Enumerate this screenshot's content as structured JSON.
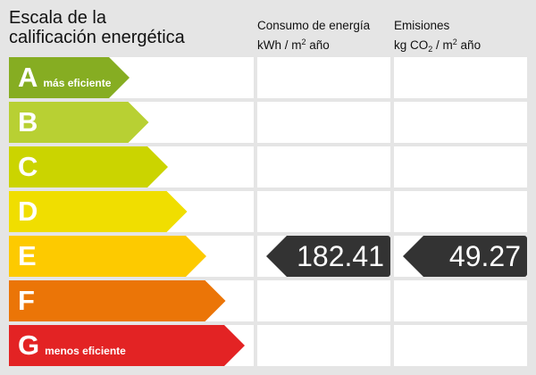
{
  "title_line1": "Escala de la",
  "title_line2": "calificación energética",
  "consumo": {
    "line1": "Consumo de energía",
    "unit_a": "kWh / m",
    "unit_sup": "2",
    "unit_b": " año"
  },
  "emisiones": {
    "line1": "Emisiones",
    "unit_a": "kg CO",
    "unit_sub": "2",
    "unit_b": " / m",
    "unit_sup": "2",
    "unit_c": " año"
  },
  "ratings": [
    {
      "letter": "A",
      "label": "más eficiente",
      "color": "#86ad22"
    },
    {
      "letter": "B",
      "label": "",
      "color": "#b8d033"
    },
    {
      "letter": "C",
      "label": "",
      "color": "#cbd400"
    },
    {
      "letter": "D",
      "label": "",
      "color": "#f0de00"
    },
    {
      "letter": "E",
      "label": "",
      "color": "#fdca00"
    },
    {
      "letter": "F",
      "label": "",
      "color": "#eb7507"
    },
    {
      "letter": "G",
      "label": "menos eficiente",
      "color": "#e32324"
    }
  ],
  "current_rating": "E",
  "consumo_value": "182.41",
  "emisiones_value": "49.27"
}
